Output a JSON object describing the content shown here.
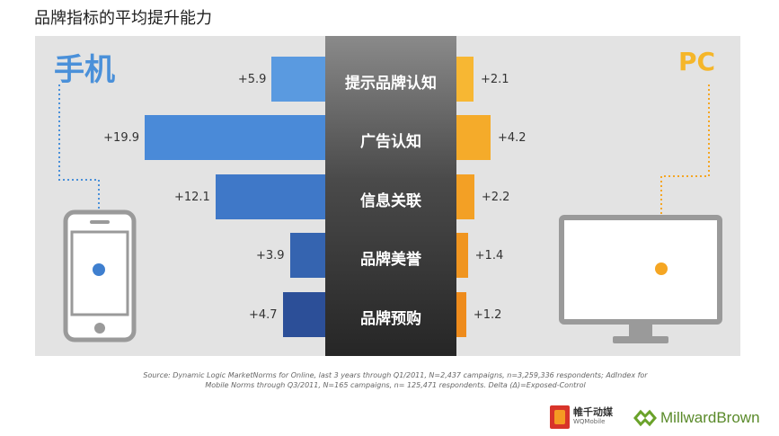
{
  "page_title": "品牌指标的平均提升能力",
  "left_device_label": "手机",
  "right_device_label": "PC",
  "source_line1": "Source:  Dynamic Logic MarketNorms for Online, last 3 years through Q1/2011, N=2,437 campaigns, n=3,259,336 respondents; AdIndex for",
  "source_line2": "Mobile Norms through Q3/2011, N=165 campaigns, n= 125,471 respondents.  Delta (Δ)=Exposed-Control",
  "logo_wq": {
    "cn": "帷千动媒",
    "en": "WQMobile"
  },
  "logo_mb": "MillwardBrown",
  "colors": {
    "mobile": "#3f7fcf",
    "pc": "#f5a623",
    "center": "#2e2e2e",
    "panel": "#e3e3e3"
  },
  "chart_data": {
    "type": "bar",
    "categories": [
      "提示品牌认知",
      "广告认知",
      "信息关联",
      "品牌美誉",
      "品牌预购"
    ],
    "series": [
      {
        "name": "手机",
        "values": [
          5.9,
          19.9,
          12.1,
          3.9,
          4.7
        ]
      },
      {
        "name": "PC",
        "values": [
          2.1,
          4.2,
          2.2,
          1.4,
          1.2
        ]
      }
    ],
    "value_labels_left": [
      "+5.9",
      "+19.9",
      "+12.1",
      "+3.9",
      "+4.7"
    ],
    "value_labels_right": [
      "+2.1",
      "+4.2",
      "+2.2",
      "+1.4",
      "+1.2"
    ],
    "orientation": "diverging-horizontal",
    "xlim": [
      0,
      20
    ],
    "grid": false
  }
}
